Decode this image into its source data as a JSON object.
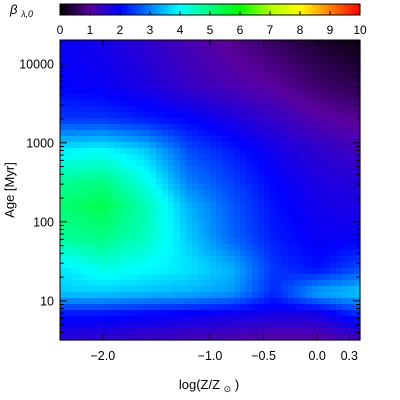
{
  "chart_data": {
    "type": "heatmap",
    "colorbar": {
      "label_symbol": "β",
      "label_subscript": "λ,0",
      "range": [
        0,
        10
      ],
      "ticks": [
        "0",
        "1",
        "2",
        "3",
        "4",
        "5",
        "6",
        "7",
        "8",
        "9",
        "10"
      ]
    },
    "xlabel": {
      "text": "log(Z/Z",
      "sub": "⊙",
      "close": ")"
    },
    "ylabel": {
      "text": "Age ",
      "units": "[Myr]"
    },
    "x_scale": "linear",
    "y_scale": "log",
    "xlim": [
      -2.4,
      0.4
    ],
    "ylim": [
      3.2,
      20000
    ],
    "x_ticks": [
      {
        "value": -2.0,
        "label": "−2.0"
      },
      {
        "value": -1.0,
        "label": "−1.0"
      },
      {
        "value": -0.5,
        "label": "−0.5"
      },
      {
        "value": 0.0,
        "label": "0.0"
      },
      {
        "value": 0.3,
        "label": "0.3"
      }
    ],
    "y_ticks": [
      {
        "value": 10,
        "label": "10"
      },
      {
        "value": 100,
        "label": "100"
      },
      {
        "value": 1000,
        "label": "1000"
      },
      {
        "value": 10000,
        "label": "10000"
      }
    ],
    "grid": false,
    "value_grid": {
      "x": [
        -2.4,
        -2.0,
        -1.6,
        -1.2,
        -0.8,
        -0.4,
        0.0,
        0.4
      ],
      "y_log10": [
        0.5,
        0.85,
        1.1,
        1.4,
        1.8,
        2.2,
        2.5,
        2.9,
        3.3,
        3.7,
        4.3
      ],
      "values": [
        [
          1.5,
          1.4,
          1.3,
          1.2,
          1.1,
          1.0,
          1.0,
          1.2
        ],
        [
          2.2,
          2.2,
          2.1,
          2.0,
          1.9,
          1.8,
          1.8,
          2.4
        ],
        [
          3.6,
          3.6,
          3.5,
          3.4,
          3.2,
          2.3,
          3.3,
          3.6
        ],
        [
          3.8,
          4.2,
          4.0,
          3.8,
          3.4,
          2.4,
          2.1,
          2.6
        ],
        [
          4.8,
          5.0,
          4.5,
          3.6,
          2.8,
          2.2,
          1.9,
          1.9
        ],
        [
          5.1,
          5.4,
          4.6,
          3.4,
          2.7,
          2.1,
          1.8,
          1.7
        ],
        [
          4.8,
          5.0,
          4.2,
          3.0,
          2.5,
          2.0,
          1.7,
          1.6
        ],
        [
          3.9,
          4.0,
          3.6,
          2.6,
          2.2,
          1.8,
          1.5,
          1.3
        ],
        [
          2.4,
          2.4,
          2.2,
          2.0,
          1.7,
          1.4,
          1.1,
          0.9
        ],
        [
          2.0,
          1.9,
          1.7,
          1.4,
          1.2,
          1.0,
          0.7,
          0.5
        ],
        [
          1.9,
          1.8,
          1.5,
          1.2,
          0.9,
          0.6,
          0.3,
          0.1
        ]
      ]
    }
  }
}
